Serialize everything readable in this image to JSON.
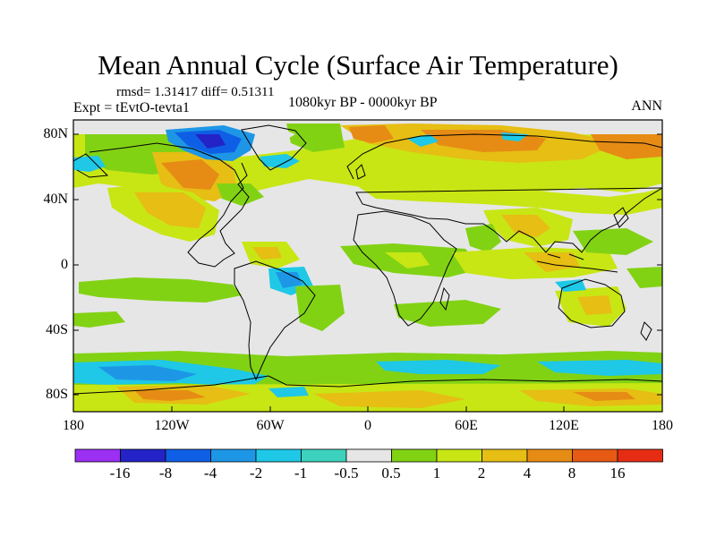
{
  "figure": {
    "title": "Mean Annual Cycle (Surface Air Temperature)",
    "stats": "rmsd= 1.31417 diff= 0.51311",
    "experiment": "Expt = tEvtO-tevta1",
    "period": "1080kyr BP - 0000kyr BP",
    "season": "ANN"
  },
  "axes": {
    "lat_labels": [
      "80N",
      "40N",
      "0",
      "40S",
      "80S"
    ],
    "lon_labels": [
      "180",
      "120W",
      "60W",
      "0",
      "60E",
      "120E",
      "180"
    ]
  },
  "colorbar": {
    "boundaries": [
      "-16",
      "-8",
      "-4",
      "-2",
      "-1",
      "-0.5",
      "0.5",
      "1",
      "2",
      "4",
      "8",
      "16"
    ],
    "colors": [
      "#9b2ff2",
      "#2323c8",
      "#0f5fe6",
      "#1e96e6",
      "#1ec8e6",
      "#3cd2be",
      "#e6e6e6",
      "#82d214",
      "#c8e614",
      "#e6be14",
      "#e68c14",
      "#e65a14",
      "#e62d14"
    ]
  },
  "chart_data": {
    "type": "heatmap",
    "title": "Mean Annual Cycle (Surface Air Temperature)",
    "variable": "Surface Air Temperature difference",
    "experiment": "tEvtO-tevta1",
    "period": "1080kyr BP - 0000kyr BP",
    "season": "ANN",
    "rmsd": 1.31417,
    "diff": 0.51311,
    "lon_range": [
      -180,
      180
    ],
    "lat_range": [
      -90,
      90
    ],
    "lat_ticks": [
      "80N",
      "40N",
      "0",
      "40S",
      "80S"
    ],
    "lon_ticks": [
      "180",
      "120W",
      "60W",
      "0",
      "60E",
      "120E",
      "180"
    ],
    "contour_levels": [
      -16,
      -8,
      -4,
      -2,
      -1,
      -0.5,
      0.5,
      1,
      2,
      4,
      8,
      16
    ]
  }
}
